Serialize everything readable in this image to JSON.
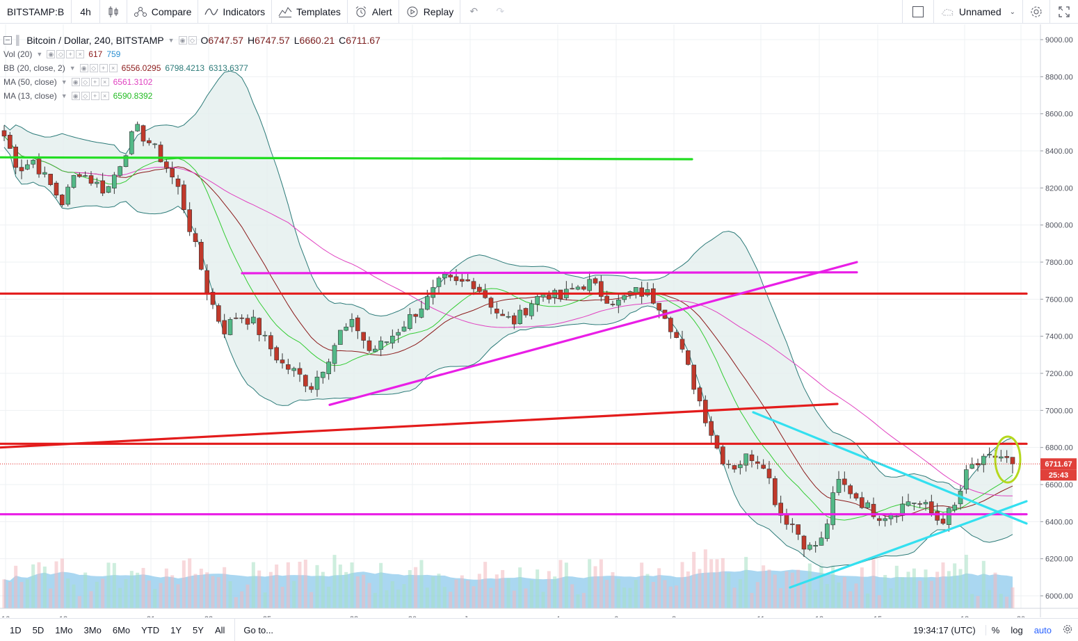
{
  "toolbar": {
    "symbol": "BITSTAMP:B",
    "interval": "4h",
    "compare": "Compare",
    "indicators": "Indicators",
    "templates": "Templates",
    "alert": "Alert",
    "replay": "Replay",
    "layout_name": "Unnamed"
  },
  "legend": {
    "title": "Bitcoin / Dollar, 240, BITSTAMP",
    "o_label": "O",
    "o_value": "6747.57",
    "h_label": "H",
    "h_value": "6747.57",
    "l_label": "L",
    "l_value": "6660.21",
    "c_label": "C",
    "c_value": "6711.67",
    "vol_name": "Vol (20)",
    "vol_v1": "617",
    "vol_v2": "759",
    "bb_name": "BB (20, close, 2)",
    "bb_v1": "6556.0295",
    "bb_v2": "6798.4213",
    "bb_v3": "6313.6377",
    "ma50_name": "MA (50, close)",
    "ma50_value": "6561.3102",
    "ma13_name": "MA (13, close)",
    "ma13_value": "6590.8392"
  },
  "price_axis": {
    "labels": [
      "9000.00",
      "8800.00",
      "8600.00",
      "8400.00",
      "8200.00",
      "8000.00",
      "7800.00",
      "7600.00",
      "7400.00",
      "7200.00",
      "7000.00",
      "6800.00",
      "6600.00",
      "6400.00",
      "6200.00",
      "6000.00"
    ],
    "last_price": "6711.67",
    "countdown": "25:43"
  },
  "time_axis": {
    "labels": [
      "16",
      "18",
      "21",
      "23",
      "25",
      "28",
      "30",
      "Jun",
      "4",
      "6",
      "8",
      "11",
      "13",
      "15",
      "18",
      "20"
    ]
  },
  "bottom": {
    "ranges": [
      "1D",
      "5D",
      "1Mo",
      "3Mo",
      "6Mo",
      "YTD",
      "1Y",
      "5Y",
      "All"
    ],
    "goto": "Go to...",
    "clock": "19:34:17 (UTC)",
    "percent": "%",
    "log": "log",
    "auto": "auto"
  },
  "colors": {
    "up": "#53b987",
    "down": "#eb4d5c",
    "candle_up_fill": "#53b987",
    "candle_down_fill": "#c0392b",
    "bb_fill": "#e3efee",
    "bb_line": "#2b7a78",
    "ma50": "#e040c0",
    "ma13": "#33cc33",
    "basis": "#8b1a1a",
    "volume_ma": "#8ec9ec"
  },
  "chart_data": {
    "type": "candlestick",
    "symbol": "BITSTAMP:BTCUSD",
    "interval": "240",
    "x_dates": [
      "16",
      "18",
      "21",
      "23",
      "25",
      "28",
      "30",
      "Jun",
      "4",
      "6",
      "8",
      "11",
      "13",
      "15",
      "18",
      "20"
    ],
    "ylim": [
      6000,
      9000
    ],
    "last_candle": {
      "open": 6747.57,
      "high": 6747.57,
      "low": 6660.21,
      "close": 6711.67
    },
    "price_path": [
      8480,
      8300,
      8350,
      8230,
      8120,
      8300,
      8240,
      8180,
      8350,
      8520,
      8440,
      8330,
      8180,
      7900,
      7620,
      7430,
      7520,
      7480,
      7360,
      7250,
      7200,
      7130,
      7260,
      7420,
      7470,
      7320,
      7360,
      7440,
      7520,
      7600,
      7710,
      7680,
      7700,
      7610,
      7500,
      7480,
      7580,
      7640,
      7600,
      7660,
      7690,
      7620,
      7580,
      7640,
      7630,
      7560,
      7390,
      7180,
      6960,
      6750,
      6700,
      6760,
      6720,
      6450,
      6380,
      6250,
      6300,
      6620,
      6560,
      6480,
      6430,
      6460,
      6520,
      6480,
      6400,
      6470,
      6690,
      6720,
      6760,
      6711.67
    ],
    "drawings": [
      {
        "name": "green-resistance",
        "price": [
          8365,
          8355
        ]
      },
      {
        "name": "red-level-upper",
        "price": [
          7630,
          7630
        ]
      },
      {
        "name": "magenta-channel-top",
        "price": [
          7740,
          7745
        ]
      },
      {
        "name": "magenta-trend-up",
        "price": [
          7030,
          7800
        ]
      },
      {
        "name": "red-trend-lower",
        "price": [
          6800,
          7035
        ]
      },
      {
        "name": "red-level-6820",
        "price": [
          6820,
          6820
        ]
      },
      {
        "name": "magenta-level-6440",
        "price": [
          6440,
          6440
        ]
      },
      {
        "name": "cyan-down-trend",
        "price": [
          6990,
          6390
        ]
      },
      {
        "name": "cyan-up-trend",
        "price": [
          6045,
          6510
        ]
      }
    ]
  }
}
